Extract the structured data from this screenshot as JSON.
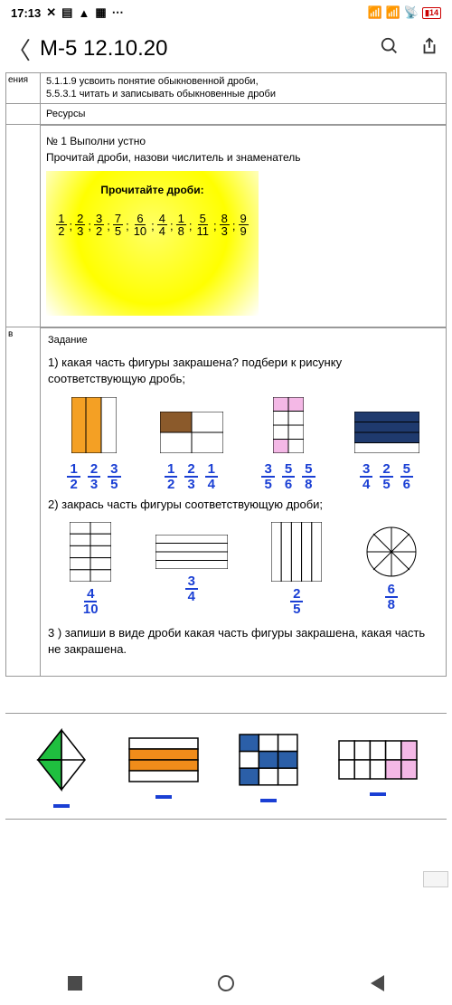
{
  "status": {
    "time": "17:13",
    "battery": "14"
  },
  "header": {
    "title": "M-5 12.10.20"
  },
  "top": {
    "left_label": "ения",
    "line1": "5.1.1.9 усвоить понятие обыкновенной дроби,",
    "line2": "5.5.3.1 читать и записывать обыкновенные дроби"
  },
  "resources_label": "Ресурсы",
  "task1": {
    "num": "№ 1 Выполни устно",
    "instr": "Прочитай дроби, назови числитель и знаменатель",
    "yellow_title": "Прочитайте дроби:",
    "fractions": [
      [
        "1",
        "2"
      ],
      [
        "2",
        "3"
      ],
      [
        "3",
        "2"
      ],
      [
        "7",
        "5"
      ],
      [
        "6",
        "10"
      ],
      [
        "4",
        "4"
      ],
      [
        "1",
        "8"
      ],
      [
        "5",
        "11"
      ],
      [
        "8",
        "3"
      ],
      [
        "9",
        "9"
      ]
    ]
  },
  "task2": {
    "label": "Задание",
    "left_label": "в",
    "q1": "1) какая часть фигуры закрашена? подбери к рисунку соответствующую дробь;",
    "q2": "2)   закрась часть фигуры соответствующую дроби;",
    "q3": "3 ) запиши в виде дроби какая часть фигуры закрашена, какая часть не закрашена.",
    "group1": [
      {
        "fracs": [
          [
            "1",
            "2"
          ],
          [
            "2",
            "3"
          ],
          [
            "3",
            "5"
          ]
        ]
      },
      {
        "fracs": [
          [
            "1",
            "2"
          ],
          [
            "2",
            "3"
          ],
          [
            "1",
            "4"
          ]
        ]
      },
      {
        "fracs": [
          [
            "3",
            "5"
          ],
          [
            "5",
            "6"
          ],
          [
            "5",
            "8"
          ]
        ]
      },
      {
        "fracs": [
          [
            "3",
            "4"
          ],
          [
            "2",
            "5"
          ],
          [
            "5",
            "6"
          ]
        ]
      }
    ],
    "group2": [
      [
        "4",
        "10"
      ],
      [
        "3",
        "4"
      ],
      [
        "2",
        "5"
      ],
      [
        "6",
        "8"
      ]
    ]
  },
  "colors": {
    "orange": "#f4a024",
    "brown": "#8b5a2b",
    "pink": "#f4b8e6",
    "darkblue": "#1f3a6e",
    "green": "#1fbf3f",
    "orange2": "#f08c1a",
    "blue2": "#2b5fa8",
    "pink2": "#f4b8e6",
    "fraction_blue": "#1a3fd4"
  }
}
